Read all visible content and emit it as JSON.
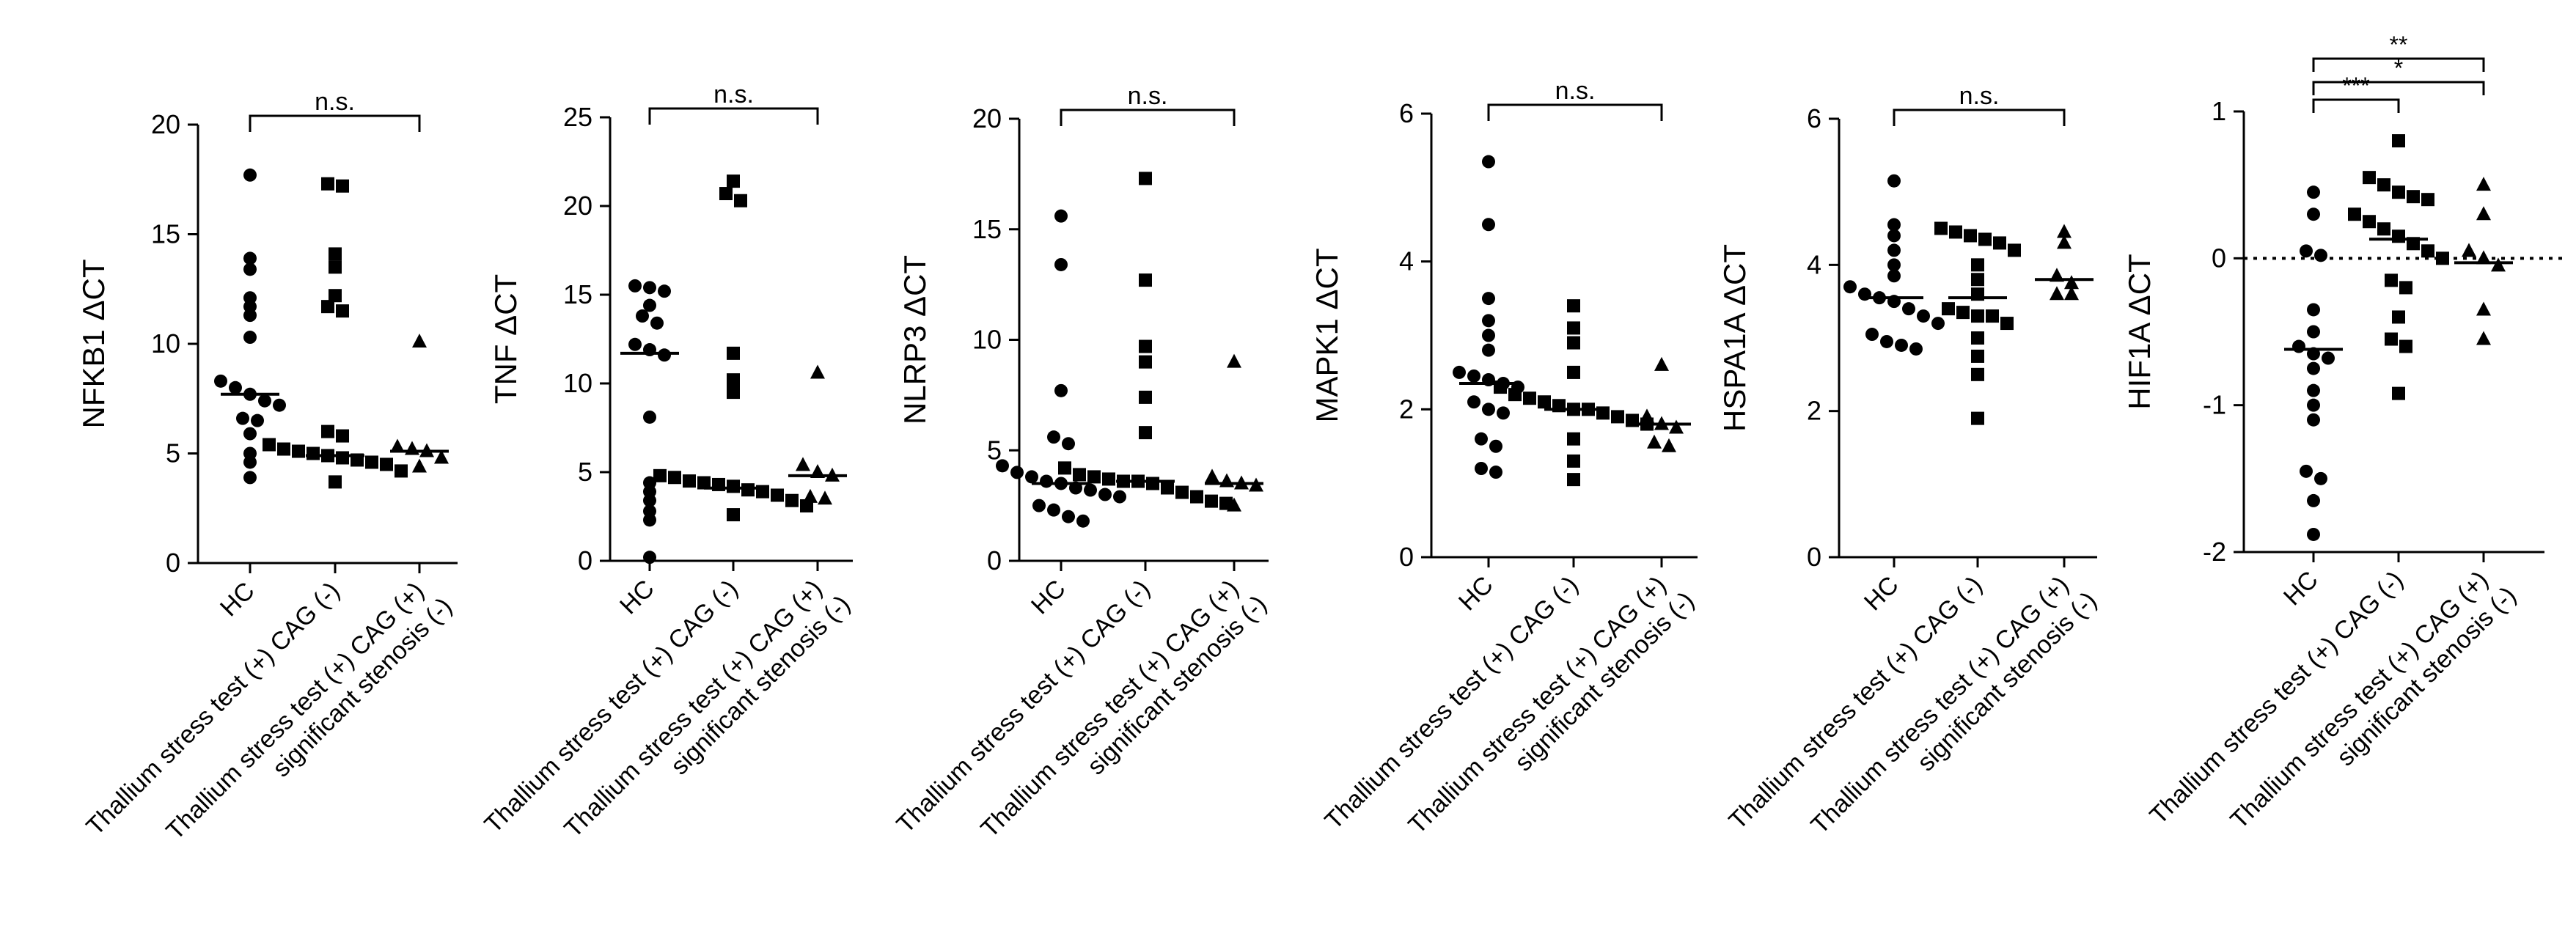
{
  "figure": {
    "colors": {
      "ink": "#000000",
      "background": "#ffffff"
    }
  },
  "chart_data": [
    {
      "type": "scatter",
      "ylabel": "NFKB1 ΔCT",
      "ylim": [
        0,
        20
      ],
      "yticks": [
        0,
        5,
        10,
        15,
        20
      ],
      "categories": [
        "HC",
        "Thallium stress test (+) CAG (-)",
        "Thallium stress test (+) CAG (+)\nsignificant stenosis (-)"
      ],
      "groups": [
        {
          "name": "HC",
          "marker": "circle",
          "median": 7.7,
          "values": [
            17.7,
            13.9,
            13.4,
            12.1,
            11.7,
            11.3,
            10.3,
            8.3,
            8.0,
            7.7,
            7.4,
            7.2,
            6.6,
            6.5,
            5.9,
            5.0,
            4.6,
            3.9
          ]
        },
        {
          "name": "Thallium stress test (+) CAG (-)",
          "marker": "square",
          "median": 4.9,
          "values": [
            17.3,
            17.2,
            14.1,
            13.5,
            12.2,
            11.7,
            11.5,
            6.0,
            5.8,
            5.4,
            5.2,
            5.1,
            5.0,
            4.9,
            4.8,
            4.7,
            4.6,
            4.5,
            4.2,
            3.7
          ]
        },
        {
          "name": "Thallium stress test (+) CAG (+) significant stenosis (-)",
          "marker": "triangle",
          "median": 5.1,
          "values": [
            10.1,
            5.3,
            5.2,
            5.1,
            4.8,
            4.4
          ]
        }
      ],
      "brackets": [
        {
          "from": 0,
          "to": 2,
          "label": "n.s."
        }
      ]
    },
    {
      "type": "scatter",
      "ylabel": "TNF ΔCT",
      "ylim": [
        0,
        25
      ],
      "yticks": [
        0,
        5,
        10,
        15,
        20,
        25
      ],
      "categories": [
        "HC",
        "Thallium stress test (+) CAG (-)",
        "Thallium stress test (+) CAG (+)\nsignificant stenosis (-)"
      ],
      "groups": [
        {
          "name": "HC",
          "marker": "circle",
          "median": 11.7,
          "values": [
            15.5,
            15.4,
            15.2,
            14.4,
            13.8,
            13.4,
            12.2,
            11.9,
            11.6,
            8.1,
            4.4,
            3.9,
            3.4,
            2.8,
            2.3,
            0.2
          ]
        },
        {
          "name": "Thallium stress test (+) CAG (-)",
          "marker": "square",
          "median": 4.1,
          "values": [
            21.4,
            20.7,
            20.3,
            11.7,
            10.2,
            9.5,
            4.8,
            4.7,
            4.5,
            4.4,
            4.3,
            4.2,
            4.0,
            3.9,
            3.7,
            3.4,
            3.1,
            2.6
          ]
        },
        {
          "name": "Thallium stress test (+) CAG (+) significant stenosis (-)",
          "marker": "triangle",
          "median": 4.8,
          "values": [
            10.6,
            5.4,
            5.0,
            4.8,
            3.6,
            3.5
          ]
        }
      ],
      "brackets": [
        {
          "from": 0,
          "to": 2,
          "label": "n.s."
        }
      ]
    },
    {
      "type": "scatter",
      "ylabel": "NLRP3 ΔCT",
      "ylim": [
        0,
        20
      ],
      "yticks": [
        0,
        5,
        10,
        15,
        20
      ],
      "categories": [
        "HC",
        "Thallium stress test (+) CAG (-)",
        "Thallium stress test (+) CAG (+)\nsignificant stenosis (-)"
      ],
      "groups": [
        {
          "name": "HC",
          "marker": "circle",
          "median": 3.5,
          "values": [
            15.6,
            13.4,
            7.7,
            5.6,
            5.3,
            4.3,
            4.0,
            3.8,
            3.6,
            3.5,
            3.3,
            3.2,
            3.0,
            2.9,
            2.5,
            2.3,
            2.0,
            1.8
          ]
        },
        {
          "name": "Thallium stress test (+) CAG (-)",
          "marker": "square",
          "median": 3.6,
          "values": [
            17.3,
            12.7,
            9.7,
            9.0,
            7.4,
            5.8,
            4.2,
            3.9,
            3.8,
            3.7,
            3.6,
            3.6,
            3.5,
            3.3,
            3.1,
            2.9,
            2.7,
            2.6
          ]
        },
        {
          "name": "Thallium stress test (+) CAG (+) significant stenosis (-)",
          "marker": "triangle",
          "median": 3.5,
          "values": [
            9.0,
            3.8,
            3.6,
            3.5,
            3.4,
            2.5
          ]
        }
      ],
      "brackets": [
        {
          "from": 0,
          "to": 2,
          "label": "n.s."
        }
      ]
    },
    {
      "type": "scatter",
      "ylabel": "MAPK1 ΔCT",
      "ylim": [
        0,
        6
      ],
      "yticks": [
        0,
        2,
        4,
        6
      ],
      "categories": [
        "HC",
        "Thallium stress test (+) CAG (-)",
        "Thallium stress test (+) CAG (+)\nsignificant stenosis (-)"
      ],
      "groups": [
        {
          "name": "HC",
          "marker": "circle",
          "median": 2.35,
          "values": [
            5.35,
            4.5,
            3.5,
            3.2,
            3.0,
            2.8,
            2.5,
            2.45,
            2.4,
            2.35,
            2.3,
            2.1,
            2.0,
            1.95,
            1.6,
            1.5,
            1.2,
            1.15
          ]
        },
        {
          "name": "Thallium stress test (+) CAG (-)",
          "marker": "square",
          "median": 2.0,
          "values": [
            3.4,
            3.1,
            2.9,
            2.5,
            2.3,
            2.2,
            2.15,
            2.1,
            2.05,
            2.0,
            2.0,
            1.95,
            1.9,
            1.85,
            1.8,
            1.6,
            1.3,
            1.05
          ]
        },
        {
          "name": "Thallium stress test (+) CAG (+) significant stenosis (-)",
          "marker": "triangle",
          "median": 1.8,
          "values": [
            2.6,
            1.9,
            1.8,
            1.75,
            1.55,
            1.5
          ]
        }
      ],
      "brackets": [
        {
          "from": 0,
          "to": 2,
          "label": "n.s."
        }
      ]
    },
    {
      "type": "scatter",
      "ylabel": "HSPA1A ΔCT",
      "ylim": [
        0,
        6
      ],
      "yticks": [
        0,
        2,
        4,
        6
      ],
      "categories": [
        "HC",
        "Thallium stress test (+) CAG (-)",
        "Thallium stress test (+) CAG (+)\nsignificant stenosis (-)"
      ],
      "groups": [
        {
          "name": "HC",
          "marker": "circle",
          "median": 3.55,
          "values": [
            5.15,
            4.55,
            4.4,
            4.2,
            4.0,
            3.85,
            3.7,
            3.6,
            3.55,
            3.5,
            3.4,
            3.3,
            3.2,
            3.05,
            2.95,
            2.9,
            2.85
          ]
        },
        {
          "name": "Thallium stress test (+) CAG (-)",
          "marker": "square",
          "median": 3.55,
          "values": [
            4.5,
            4.45,
            4.4,
            4.35,
            4.3,
            4.2,
            4.0,
            3.8,
            3.6,
            3.4,
            3.35,
            3.3,
            3.3,
            3.2,
            3.0,
            2.75,
            2.5,
            1.9
          ]
        },
        {
          "name": "Thallium stress test (+) CAG (+) significant stenosis (-)",
          "marker": "triangle",
          "median": 3.8,
          "values": [
            4.45,
            4.3,
            3.85,
            3.75,
            3.6,
            3.6
          ]
        }
      ],
      "brackets": [
        {
          "from": 0,
          "to": 2,
          "label": "n.s."
        }
      ]
    },
    {
      "type": "scatter",
      "ylabel": "HIF1A ΔCT",
      "ylim": [
        -2,
        1
      ],
      "yticks": [
        -2,
        -1,
        0,
        1
      ],
      "reference_line": 0,
      "categories": [
        "HC",
        "Thallium stress test (+) CAG (-)",
        "Thallium stress test (+) CAG (+)\nsignificant stenosis (-)"
      ],
      "groups": [
        {
          "name": "HC",
          "marker": "circle",
          "median": -0.62,
          "values": [
            0.45,
            0.3,
            0.05,
            0.02,
            -0.35,
            -0.5,
            -0.6,
            -0.65,
            -0.68,
            -0.75,
            -0.9,
            -1.0,
            -1.1,
            -1.45,
            -1.5,
            -1.65,
            -1.88
          ]
        },
        {
          "name": "Thallium stress test (+) CAG (-)",
          "marker": "square",
          "median": 0.13,
          "values": [
            0.8,
            0.55,
            0.5,
            0.45,
            0.42,
            0.4,
            0.3,
            0.25,
            0.2,
            0.15,
            0.1,
            0.05,
            0.0,
            -0.15,
            -0.2,
            -0.4,
            -0.55,
            -0.6,
            -0.92
          ]
        },
        {
          "name": "Thallium stress test (+) CAG (+) significant stenosis (-)",
          "marker": "triangle",
          "median": -0.03,
          "values": [
            0.5,
            0.3,
            0.05,
            0.0,
            -0.05,
            -0.35,
            -0.55
          ]
        }
      ],
      "brackets": [
        {
          "from": 0,
          "to": 1,
          "label": "***",
          "level": 0
        },
        {
          "from": 0,
          "to": 2,
          "label": "*",
          "level": 1
        },
        {
          "from": 0,
          "to": 2,
          "label": "**",
          "level": 2
        }
      ]
    }
  ]
}
